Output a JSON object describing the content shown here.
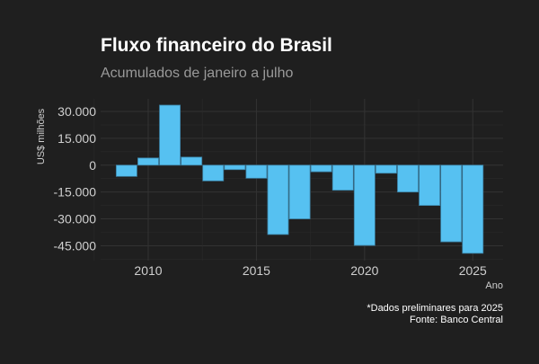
{
  "colors": {
    "background": "#1f1f1f",
    "grid": "#2e2e2e",
    "bar": "#56c1f1",
    "bar_outline": "#3a7ea0",
    "title": "#ffffff",
    "subtitle": "#9a9a9a",
    "axis_text": "#cfcfcf"
  },
  "chart_data": {
    "type": "bar",
    "title": "Fluxo financeiro do Brasil",
    "subtitle": "Acumulados de janeiro a julho",
    "xlabel": "Ano",
    "ylabel": "US$ milhões",
    "x": [
      2009,
      2010,
      2011,
      2012,
      2013,
      2014,
      2015,
      2016,
      2017,
      2018,
      2019,
      2020,
      2021,
      2022,
      2023,
      2024,
      2025
    ],
    "values": [
      -6300,
      4000,
      33500,
      4500,
      -8800,
      -2500,
      -7300,
      -38700,
      -30000,
      -3700,
      -14000,
      -44800,
      -4500,
      -15000,
      -22500,
      -42800,
      -49200
    ],
    "xlim": [
      2007.8,
      2026.4
    ],
    "ylim": [
      -53300,
      37000
    ],
    "x_ticks": [
      2010,
      2015,
      2020,
      2025
    ],
    "x_tick_labels": [
      "2010",
      "2015",
      "2020",
      "2025"
    ],
    "y_ticks": [
      30000,
      15000,
      0,
      -15000,
      -30000,
      -45000
    ],
    "y_tick_labels": [
      "30.000",
      "15.000",
      "0",
      "-15.000",
      "-30.000",
      "-45.000"
    ],
    "grid": true,
    "legend": "none",
    "notes": [
      "*Dados preliminares para 2025",
      "Fonte: Banco Central"
    ]
  }
}
